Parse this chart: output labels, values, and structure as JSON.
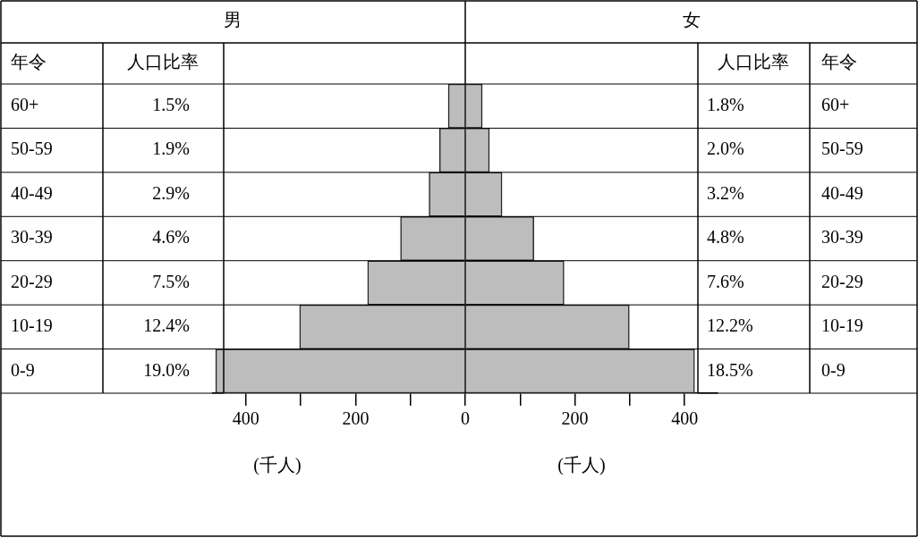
{
  "chart_data": {
    "type": "bar",
    "orientation": "horizontal",
    "xlabel": "(千人)",
    "annotations": [
      "年令",
      "人口比率",
      "1.5%",
      "1.9%",
      "2.9%",
      "4.6%",
      "7.5%",
      "12.4%",
      "19.0%",
      "1.8%",
      "2.0%",
      "3.2%",
      "4.8%",
      "7.6%",
      "12.2%",
      "18.5%"
    ],
    "categories": [
      "60+",
      "50-59",
      "40-49",
      "30-39",
      "20-29",
      "10-19",
      "0-9"
    ],
    "series": [
      {
        "name": "男",
        "color": "#bdbdbd",
        "values": [
          -31,
          -47,
          -66,
          -118,
          -178,
          -302,
          -455
        ]
      },
      {
        "name": "女",
        "color": "#bdbdbd",
        "values": [
          31,
          44,
          67,
          125,
          180,
          299,
          418
        ]
      }
    ],
    "xlim": [
      -460,
      460
    ],
    "xticks": [
      {
        "value": -400,
        "label": "400"
      },
      {
        "value": -300,
        "label": null
      },
      {
        "value": -200,
        "label": "200"
      },
      {
        "value": -100,
        "label": null
      },
      0,
      {
        "value": 100,
        "label": null
      },
      200,
      {
        "value": 300,
        "label": null
      },
      400
    ],
    "grid": false,
    "stacked": true,
    "ref_lines": [
      {
        "axis": "x",
        "value": 0
      }
    ]
  }
}
